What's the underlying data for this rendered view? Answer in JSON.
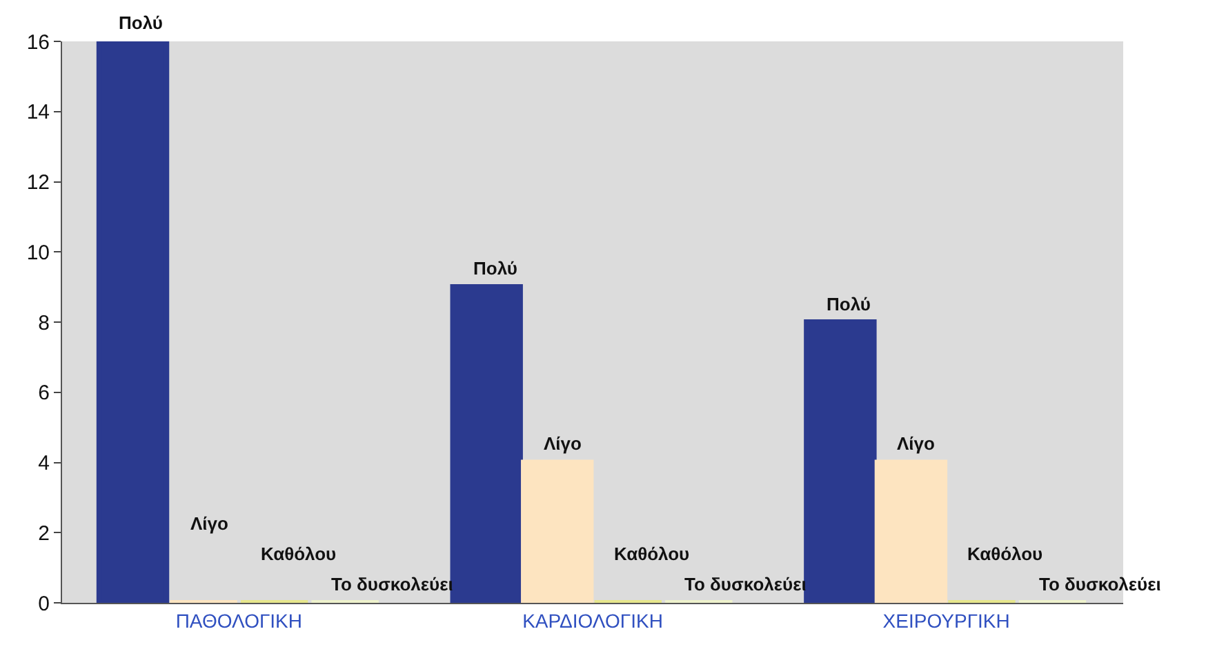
{
  "chart_data": {
    "type": "bar",
    "categories": [
      "ΠΑΘΟΛΟΓΙΚΗ",
      "ΚΑΡΔΙΟΛΟΓΙΚΗ",
      "ΧΕΙΡΟΥΡΓΙΚΗ"
    ],
    "series": [
      {
        "name": "Πολύ",
        "color": "#2b3a8f",
        "values": [
          16,
          9,
          8
        ]
      },
      {
        "name": "Λίγο",
        "color": "#fde4c0",
        "values": [
          0,
          4,
          4
        ]
      },
      {
        "name": "Καθόλου",
        "color": "#e6e68c",
        "values": [
          0,
          0,
          0
        ]
      },
      {
        "name": "Το δυσκολεύει",
        "color": "#eef2cc",
        "values": [
          0,
          0,
          0
        ]
      }
    ],
    "ylim": [
      0,
      16
    ],
    "yticks": [
      0,
      2,
      4,
      6,
      8,
      10,
      12,
      14,
      16
    ],
    "grid": false,
    "legend": false
  }
}
